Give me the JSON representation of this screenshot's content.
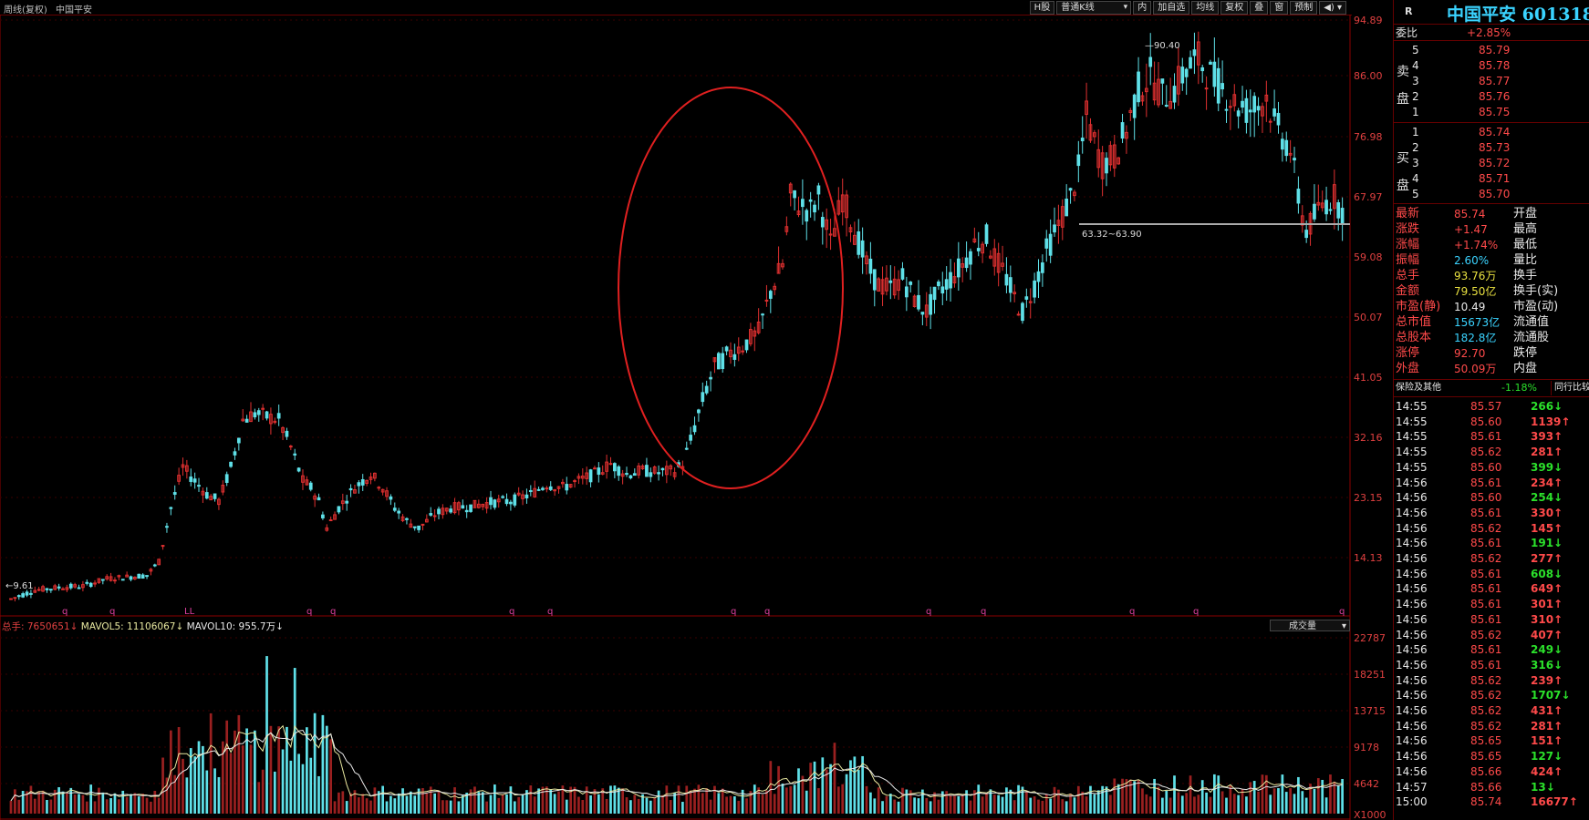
{
  "header": {
    "period_label": "周线(复权)",
    "stock_name": "中国平安"
  },
  "toolbar": {
    "buttons": [
      "H股",
      "普通K线",
      "内",
      "加自选",
      "均线",
      "复权",
      "叠",
      "窗",
      "预制"
    ],
    "menu_icon": "speaker-menu-icon"
  },
  "price_axis": [
    "94.89",
    "86.00",
    "76.98",
    "67.97",
    "59.08",
    "50.07",
    "41.05",
    "32.16",
    "23.15",
    "14.13"
  ],
  "annotations": {
    "high": "90.40",
    "low": "9.61",
    "support": "63.32~63.90",
    "q_markers": [
      "q",
      "q",
      "LL",
      "q",
      "q",
      "q",
      "q",
      "q",
      "q",
      "q",
      "q",
      "q",
      "q",
      "q"
    ]
  },
  "volume": {
    "label_total": "总手: 7650651↓",
    "label_mavol5": "MAVOL5: 11106067↓",
    "label_mavol10": "MAVOL10: 955.7万↓",
    "selector": "成交量",
    "axis": [
      "22787",
      "18251",
      "13715",
      "9178",
      "4642",
      "X1000"
    ]
  },
  "colors": {
    "up": "#e03030",
    "down": "#5fe0e8",
    "ellipse": "#e02020",
    "accent_cyan": "#3ad3ff"
  },
  "quote": {
    "r_label": "R",
    "title": "中国平安 601318",
    "weibi_label": "委比",
    "weibi_value": "+2.85%",
    "sell_label_1": "卖",
    "sell_label_2": "盘",
    "buy_label_1": "买",
    "buy_label_2": "盘",
    "sell": [
      {
        "level": "5",
        "price": "85.79"
      },
      {
        "level": "4",
        "price": "85.78"
      },
      {
        "level": "3",
        "price": "85.77"
      },
      {
        "level": "2",
        "price": "85.76"
      },
      {
        "level": "1",
        "price": "85.75"
      }
    ],
    "buy": [
      {
        "level": "1",
        "price": "85.74"
      },
      {
        "level": "2",
        "price": "85.73"
      },
      {
        "level": "3",
        "price": "85.72"
      },
      {
        "level": "4",
        "price": "85.71"
      },
      {
        "level": "5",
        "price": "85.70"
      }
    ],
    "stats": [
      {
        "l": "最新",
        "v": "85.74",
        "vc": "red",
        "l2": "开盘"
      },
      {
        "l": "涨跌",
        "v": "+1.47",
        "vc": "red",
        "l2": "最高"
      },
      {
        "l": "涨幅",
        "v": "+1.74%",
        "vc": "red",
        "l2": "最低"
      },
      {
        "l": "振幅",
        "v": "2.60%",
        "vc": "cyan",
        "l2": "量比"
      },
      {
        "l": "总手",
        "v": "93.76万",
        "vc": "yellow",
        "l2": "换手"
      },
      {
        "l": "金额",
        "v": "79.50亿",
        "vc": "yellow",
        "l2": "换手(实)"
      },
      {
        "l": "市盈(静)",
        "v": "10.49",
        "vc": "white",
        "l2": "市盈(动)"
      },
      {
        "l": "总市值",
        "v": "15673亿",
        "vc": "cyan",
        "l2": "流通值"
      },
      {
        "l": "总股本",
        "v": "182.8亿",
        "vc": "cyan",
        "l2": "流通股"
      },
      {
        "l": "涨停",
        "v": "92.70",
        "vc": "red",
        "l2": "跌停"
      },
      {
        "l": "外盘",
        "v": "50.09万",
        "vc": "red",
        "l2": "内盘"
      }
    ],
    "sector_label": "保险及其他",
    "sector_change": "-1.18%",
    "peer_label": "同行比较"
  },
  "ticks": [
    {
      "t": "14:55",
      "p": "85.57",
      "v": "266",
      "d": "down"
    },
    {
      "t": "14:55",
      "p": "85.60",
      "v": "1139",
      "d": "up"
    },
    {
      "t": "14:55",
      "p": "85.61",
      "v": "393",
      "d": "up"
    },
    {
      "t": "14:55",
      "p": "85.62",
      "v": "281",
      "d": "up"
    },
    {
      "t": "14:55",
      "p": "85.60",
      "v": "399",
      "d": "down"
    },
    {
      "t": "14:56",
      "p": "85.61",
      "v": "234",
      "d": "up"
    },
    {
      "t": "14:56",
      "p": "85.60",
      "v": "254",
      "d": "down"
    },
    {
      "t": "14:56",
      "p": "85.61",
      "v": "330",
      "d": "up"
    },
    {
      "t": "14:56",
      "p": "85.62",
      "v": "145",
      "d": "up"
    },
    {
      "t": "14:56",
      "p": "85.61",
      "v": "191",
      "d": "down"
    },
    {
      "t": "14:56",
      "p": "85.62",
      "v": "277",
      "d": "up"
    },
    {
      "t": "14:56",
      "p": "85.61",
      "v": "608",
      "d": "down"
    },
    {
      "t": "14:56",
      "p": "85.61",
      "v": "649",
      "d": "up"
    },
    {
      "t": "14:56",
      "p": "85.61",
      "v": "301",
      "d": "up"
    },
    {
      "t": "14:56",
      "p": "85.61",
      "v": "310",
      "d": "up"
    },
    {
      "t": "14:56",
      "p": "85.62",
      "v": "407",
      "d": "up"
    },
    {
      "t": "14:56",
      "p": "85.61",
      "v": "249",
      "d": "down"
    },
    {
      "t": "14:56",
      "p": "85.61",
      "v": "316",
      "d": "down"
    },
    {
      "t": "14:56",
      "p": "85.62",
      "v": "239",
      "d": "up"
    },
    {
      "t": "14:56",
      "p": "85.62",
      "v": "1707",
      "d": "down"
    },
    {
      "t": "14:56",
      "p": "85.62",
      "v": "431",
      "d": "up"
    },
    {
      "t": "14:56",
      "p": "85.62",
      "v": "281",
      "d": "up"
    },
    {
      "t": "14:56",
      "p": "85.65",
      "v": "151",
      "d": "up"
    },
    {
      "t": "14:56",
      "p": "85.65",
      "v": "127",
      "d": "down"
    },
    {
      "t": "14:56",
      "p": "85.66",
      "v": "424",
      "d": "up"
    },
    {
      "t": "14:57",
      "p": "85.66",
      "v": "13",
      "d": "down"
    },
    {
      "t": "15:00",
      "p": "85.74",
      "v": "16677",
      "d": "up"
    }
  ],
  "chart_data": {
    "type": "candlestick",
    "ylim": [
      9.61,
      94.89
    ],
    "anchors": [
      [
        0,
        10.5
      ],
      [
        6,
        11.8
      ],
      [
        12,
        12.2
      ],
      [
        18,
        12.4
      ],
      [
        24,
        13.5
      ],
      [
        30,
        13.8
      ],
      [
        34,
        14
      ],
      [
        37,
        16
      ],
      [
        40,
        24
      ],
      [
        43,
        30
      ],
      [
        46,
        28
      ],
      [
        49,
        26
      ],
      [
        52,
        25
      ],
      [
        55,
        30
      ],
      [
        58,
        37
      ],
      [
        61,
        38
      ],
      [
        64,
        37.5
      ],
      [
        67,
        37
      ],
      [
        70,
        33
      ],
      [
        73,
        28
      ],
      [
        75,
        27
      ],
      [
        77,
        25
      ],
      [
        79,
        21
      ],
      [
        82,
        24
      ],
      [
        86,
        27
      ],
      [
        90,
        29
      ],
      [
        93,
        27
      ],
      [
        96,
        24
      ],
      [
        99,
        22
      ],
      [
        102,
        21
      ],
      [
        106,
        23
      ],
      [
        110,
        24
      ],
      [
        115,
        24.2
      ],
      [
        120,
        24.8
      ],
      [
        125,
        25
      ],
      [
        130,
        26
      ],
      [
        134,
        27.5
      ],
      [
        138,
        27
      ],
      [
        142,
        28
      ],
      [
        146,
        29
      ],
      [
        150,
        30.5
      ],
      [
        154,
        29
      ],
      [
        158,
        29.5
      ],
      [
        162,
        29.2
      ],
      [
        166,
        29.5
      ],
      [
        168,
        30.5
      ],
      [
        170,
        34
      ],
      [
        173,
        40
      ],
      [
        176,
        45
      ],
      [
        180,
        47
      ],
      [
        183,
        48
      ],
      [
        187,
        50
      ],
      [
        190,
        56
      ],
      [
        193,
        60
      ],
      [
        195,
        70
      ],
      [
        197,
        69
      ],
      [
        200,
        68
      ],
      [
        202,
        70
      ],
      [
        205,
        63
      ],
      [
        208,
        70
      ],
      [
        211,
        65
      ],
      [
        214,
        60
      ],
      [
        217,
        57
      ],
      [
        220,
        56.5
      ],
      [
        223,
        58
      ],
      [
        226,
        55
      ],
      [
        229,
        53
      ],
      [
        232,
        56
      ],
      [
        235,
        58
      ],
      [
        238,
        60
      ],
      [
        241,
        63
      ],
      [
        244,
        64
      ],
      [
        246,
        61
      ],
      [
        249,
        58
      ],
      [
        251,
        55
      ],
      [
        253,
        53
      ],
      [
        256,
        57
      ],
      [
        259,
        62
      ],
      [
        262,
        66
      ],
      [
        265,
        70
      ],
      [
        267,
        74
      ],
      [
        269,
        82
      ],
      [
        271,
        78
      ],
      [
        273,
        75
      ],
      [
        276,
        76
      ],
      [
        279,
        80
      ],
      [
        282,
        86
      ],
      [
        285,
        88
      ],
      [
        288,
        85
      ],
      [
        291,
        86
      ],
      [
        294,
        89
      ],
      [
        297,
        90.4
      ],
      [
        300,
        88
      ],
      [
        303,
        86
      ],
      [
        306,
        84
      ],
      [
        309,
        83
      ],
      [
        312,
        83.5
      ],
      [
        314,
        85
      ],
      [
        316,
        81
      ],
      [
        318,
        79
      ],
      [
        320,
        77
      ],
      [
        322,
        70
      ],
      [
        324,
        65
      ],
      [
        326,
        67
      ],
      [
        328,
        69
      ],
      [
        331,
        70
      ],
      [
        333,
        68
      ]
    ],
    "volume_ylim": [
      0,
      22787
    ]
  }
}
